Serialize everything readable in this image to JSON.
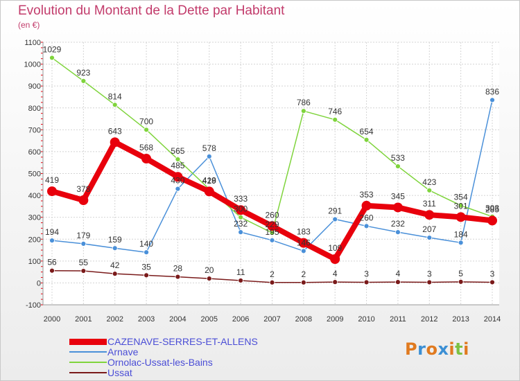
{
  "title": "Evolution du Montant de la Dette par Habitant",
  "unit": "(en €)",
  "logo": {
    "letters": [
      "P",
      "r",
      "o",
      "x",
      "i",
      "t",
      "i"
    ],
    "colors": [
      "#e07a1f",
      "#3b8fd4",
      "#e07a1f",
      "#3b8fd4",
      "#e07a1f",
      "#7cc142",
      "#e07a1f"
    ]
  },
  "chart_data": {
    "type": "line",
    "title": "Evolution du Montant de la Dette par Habitant",
    "ylabel": "(en €)",
    "xlabel": "",
    "x": [
      "2000",
      "2001",
      "2002",
      "2003",
      "2004",
      "2005",
      "2006",
      "2007",
      "2008",
      "2009",
      "2010",
      "2011",
      "2012",
      "2013",
      "2014"
    ],
    "ylim": [
      -100,
      1100
    ],
    "yticks": [
      "-100",
      "0",
      "100",
      "200",
      "300",
      "400",
      "500",
      "600",
      "700",
      "800",
      "900",
      "1000",
      "1100"
    ],
    "grid": true,
    "legend_position": "bottom-left",
    "series": [
      {
        "name": "CAZENAVE-SERRES-ET-ALLENS",
        "color": "#e8000c",
        "values": [
          419,
          378,
          643,
          568,
          485,
          418,
          333,
          260,
          183,
          109,
          353,
          345,
          311,
          301,
          285
        ],
        "labels": [
          "419",
          "378",
          "643",
          "568",
          "485",
          "418",
          "333",
          "260",
          "183",
          "109",
          "353",
          "345",
          "311",
          "301",
          "285"
        ]
      },
      {
        "name": "Arnave",
        "color": "#4a90d9",
        "values": [
          194,
          179,
          159,
          140,
          430,
          578,
          232,
          195,
          146,
          291,
          260,
          232,
          207,
          184,
          836
        ],
        "labels": [
          "194",
          "179",
          "159",
          "140",
          "430",
          "578",
          "232",
          "195",
          "146",
          "291",
          "260",
          "232",
          "207",
          "184",
          "836"
        ]
      },
      {
        "name": "Ornolac-Ussat-les-Bains",
        "color": "#7fd43c",
        "values": [
          1029,
          923,
          814,
          700,
          565,
          429,
          300,
          229,
          786,
          746,
          654,
          533,
          423,
          354,
          303
        ],
        "labels": [
          "1029",
          "923",
          "814",
          "700",
          "565",
          "429",
          "300",
          "229",
          "786",
          "746",
          "654",
          "533",
          "423",
          "354",
          "303"
        ]
      },
      {
        "name": "Ussat",
        "color": "#7a1a1a",
        "values": [
          56,
          55,
          42,
          35,
          28,
          20,
          11,
          2,
          2,
          4,
          3,
          4,
          3,
          5,
          3
        ],
        "labels": [
          "56",
          "55",
          "42",
          "35",
          "28",
          "20",
          "11",
          "2",
          "2",
          "4",
          "3",
          "4",
          "3",
          "5",
          "3"
        ]
      }
    ]
  }
}
